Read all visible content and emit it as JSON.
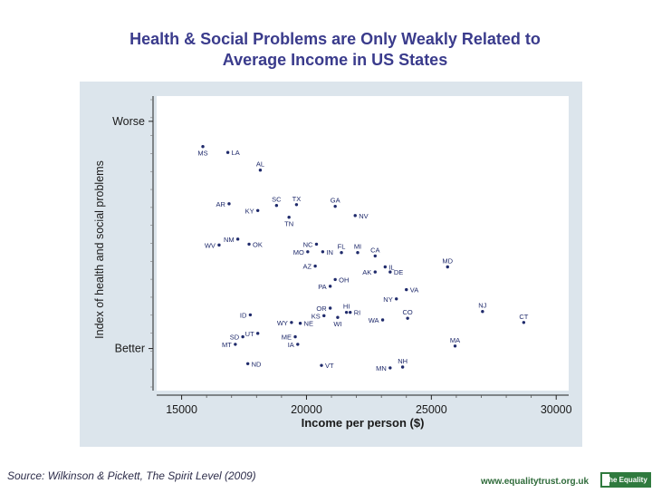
{
  "header": {
    "title_line1": "Health & Social Problems are Only Weakly Related to",
    "title_line2": "Average Income in US States"
  },
  "chart_data": {
    "type": "scatter",
    "title": "Health & Social Problems are Only Weakly Related to Average Income in US States",
    "xlabel": "Income per person ($)",
    "ylabel": "Index of health and social problems",
    "xlim": [
      14000,
      30500
    ],
    "ylim": [
      -1.4,
      2.1
    ],
    "xticks": [
      15000,
      20000,
      25000,
      30000
    ],
    "xtick_labels": [
      "15000",
      "20000",
      "25000",
      "30000"
    ],
    "yticks": [
      1.8,
      -0.9
    ],
    "ytick_labels": [
      "Worse",
      "Better"
    ],
    "grid": false,
    "points": [
      {
        "label": "MS",
        "x": 15850,
        "y": 1.5,
        "pos": "below"
      },
      {
        "label": "LA",
        "x": 16850,
        "y": 1.43,
        "pos": "right"
      },
      {
        "label": "AL",
        "x": 18150,
        "y": 1.22,
        "pos": "above"
      },
      {
        "label": "AR",
        "x": 16900,
        "y": 0.82,
        "pos": "left"
      },
      {
        "label": "KY",
        "x": 18050,
        "y": 0.74,
        "pos": "left"
      },
      {
        "label": "SC",
        "x": 18800,
        "y": 0.8,
        "pos": "above"
      },
      {
        "label": "TX",
        "x": 19600,
        "y": 0.81,
        "pos": "above"
      },
      {
        "label": "GA",
        "x": 21150,
        "y": 0.79,
        "pos": "above"
      },
      {
        "label": "TN",
        "x": 19300,
        "y": 0.66,
        "pos": "below"
      },
      {
        "label": "NV",
        "x": 21950,
        "y": 0.68,
        "pos": "right"
      },
      {
        "label": "NM",
        "x": 17250,
        "y": 0.4,
        "pos": "left"
      },
      {
        "label": "WV",
        "x": 16500,
        "y": 0.33,
        "pos": "left"
      },
      {
        "label": "OK",
        "x": 17700,
        "y": 0.34,
        "pos": "right"
      },
      {
        "label": "NC",
        "x": 20400,
        "y": 0.34,
        "pos": "left"
      },
      {
        "label": "MO",
        "x": 20050,
        "y": 0.25,
        "pos": "left"
      },
      {
        "label": "IN",
        "x": 20650,
        "y": 0.25,
        "pos": "right"
      },
      {
        "label": "FL",
        "x": 21400,
        "y": 0.24,
        "pos": "above"
      },
      {
        "label": "MI",
        "x": 22050,
        "y": 0.24,
        "pos": "above"
      },
      {
        "label": "CA",
        "x": 22750,
        "y": 0.2,
        "pos": "above"
      },
      {
        "label": "AZ",
        "x": 20350,
        "y": 0.08,
        "pos": "left"
      },
      {
        "label": "IL",
        "x": 23150,
        "y": 0.07,
        "pos": "right"
      },
      {
        "label": "AK",
        "x": 22750,
        "y": 0.01,
        "pos": "left"
      },
      {
        "label": "DE",
        "x": 23350,
        "y": 0.01,
        "pos": "right"
      },
      {
        "label": "MD",
        "x": 25650,
        "y": 0.07,
        "pos": "above"
      },
      {
        "label": "OH",
        "x": 21150,
        "y": -0.08,
        "pos": "right"
      },
      {
        "label": "PA",
        "x": 20950,
        "y": -0.16,
        "pos": "left"
      },
      {
        "label": "VA",
        "x": 24000,
        "y": -0.2,
        "pos": "right"
      },
      {
        "label": "NY",
        "x": 23600,
        "y": -0.31,
        "pos": "left"
      },
      {
        "label": "NJ",
        "x": 27050,
        "y": -0.46,
        "pos": "above"
      },
      {
        "label": "OR",
        "x": 20950,
        "y": -0.42,
        "pos": "left"
      },
      {
        "label": "HI",
        "x": 21600,
        "y": -0.47,
        "pos": "above"
      },
      {
        "label": "RI",
        "x": 21750,
        "y": -0.47,
        "pos": "right"
      },
      {
        "label": "ID",
        "x": 17750,
        "y": -0.5,
        "pos": "left"
      },
      {
        "label": "KS",
        "x": 20700,
        "y": -0.51,
        "pos": "left"
      },
      {
        "label": "WI",
        "x": 21250,
        "y": -0.53,
        "pos": "below"
      },
      {
        "label": "CO",
        "x": 24050,
        "y": -0.54,
        "pos": "above"
      },
      {
        "label": "WA",
        "x": 23050,
        "y": -0.56,
        "pos": "left"
      },
      {
        "label": "WY",
        "x": 19400,
        "y": -0.59,
        "pos": "left"
      },
      {
        "label": "NE",
        "x": 19750,
        "y": -0.6,
        "pos": "right"
      },
      {
        "label": "CT",
        "x": 28700,
        "y": -0.59,
        "pos": "above"
      },
      {
        "label": "UT",
        "x": 18050,
        "y": -0.72,
        "pos": "left"
      },
      {
        "label": "SD",
        "x": 17450,
        "y": -0.76,
        "pos": "left"
      },
      {
        "label": "ME",
        "x": 19550,
        "y": -0.76,
        "pos": "left"
      },
      {
        "label": "MT",
        "x": 17150,
        "y": -0.85,
        "pos": "left"
      },
      {
        "label": "IA",
        "x": 19650,
        "y": -0.85,
        "pos": "left"
      },
      {
        "label": "MA",
        "x": 25950,
        "y": -0.87,
        "pos": "above"
      },
      {
        "label": "ND",
        "x": 17650,
        "y": -1.08,
        "pos": "right"
      },
      {
        "label": "VT",
        "x": 20600,
        "y": -1.1,
        "pos": "right"
      },
      {
        "label": "MN",
        "x": 23350,
        "y": -1.13,
        "pos": "left"
      },
      {
        "label": "NH",
        "x": 23850,
        "y": -1.12,
        "pos": "above"
      }
    ]
  },
  "footer": {
    "source": "Source: Wilkinson & Pickett, The Spirit Level (2009)",
    "url": "www.equalitytrust.org.uk",
    "logo_text": "The Equality Trust"
  }
}
